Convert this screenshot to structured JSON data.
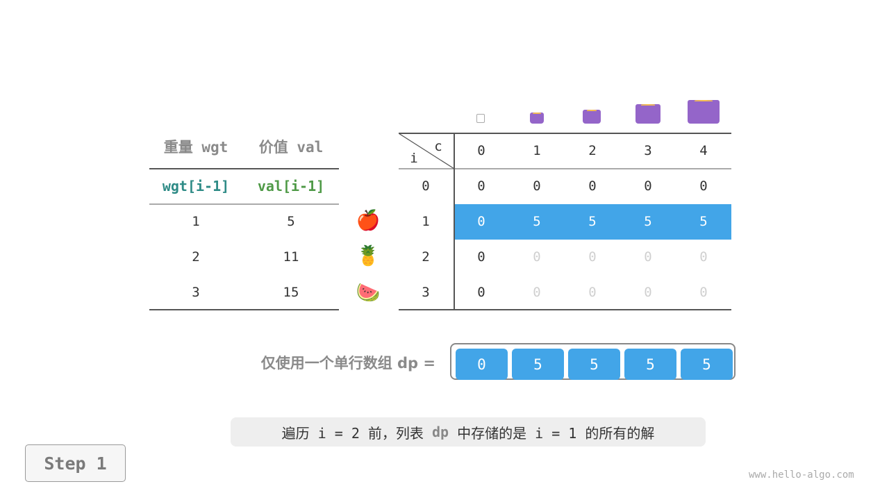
{
  "items_table": {
    "headers": [
      "重量 wgt",
      "价值 val"
    ],
    "subheaders": [
      "wgt[i-1]",
      "val[i-1]"
    ],
    "rows": [
      [
        "1",
        "5"
      ],
      [
        "2",
        "11"
      ],
      [
        "3",
        "15"
      ]
    ],
    "item_icons": [
      "apple-icon",
      "pineapple-icon",
      "watermelon-icon"
    ],
    "item_emoji": [
      "🍎",
      "🍍",
      "🍉"
    ]
  },
  "dp_table": {
    "corner_col": "c",
    "corner_row": "i",
    "col_headers": [
      "0",
      "1",
      "2",
      "3",
      "4"
    ],
    "row_headers": [
      "0",
      "1",
      "2",
      "3"
    ],
    "rows": [
      [
        "0",
        "0",
        "0",
        "0",
        "0"
      ],
      [
        "0",
        "5",
        "5",
        "5",
        "5"
      ],
      [
        "0",
        "0",
        "0",
        "0",
        "0"
      ],
      [
        "0",
        "0",
        "0",
        "0",
        "0"
      ]
    ],
    "highlight_row": 1,
    "highlight_color": "#42a5e8",
    "bag_icons": [
      "bag-capacity-0",
      "bag-capacity-1",
      "bag-capacity-2",
      "bag-capacity-3",
      "bag-capacity-4"
    ]
  },
  "dp_array": {
    "label": "仅使用一个单行数组 dp =",
    "values": [
      "0",
      "5",
      "5",
      "5",
      "5"
    ]
  },
  "caption": {
    "pre": "遍历 i = 2 前，列表 ",
    "dp": "dp",
    "post": " 中存储的是 i = 1 的所有的解"
  },
  "step_button": "Step 1",
  "watermark": "www.hello-algo.com"
}
